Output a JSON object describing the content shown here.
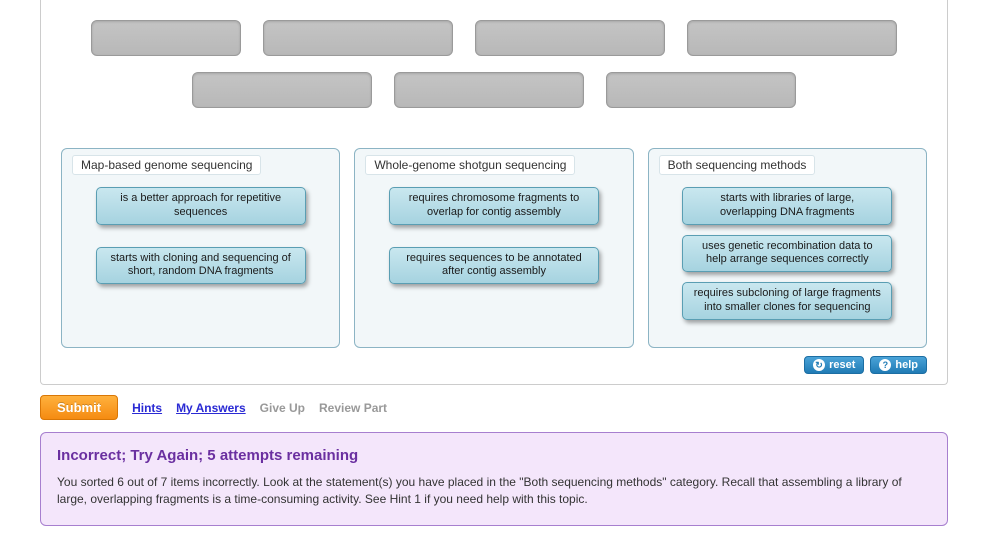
{
  "dragSlots": {
    "row1": [
      150,
      190,
      190,
      210
    ],
    "row2": [
      180,
      190,
      190
    ]
  },
  "bins": [
    {
      "title": "Map-based genome sequencing",
      "tight": false,
      "items": [
        "is a better approach for repetitive sequences",
        "starts with cloning and sequencing of short, random DNA fragments"
      ]
    },
    {
      "title": "Whole-genome shotgun sequencing",
      "tight": false,
      "items": [
        "requires chromosome fragments to overlap for contig assembly",
        "requires sequences to be annotated after contig assembly"
      ]
    },
    {
      "title": "Both sequencing methods",
      "tight": true,
      "items": [
        "starts with libraries of large, overlapping DNA fragments",
        "uses genetic recombination data to help arrange sequences correctly",
        "requires subcloning of large fragments into smaller clones for sequencing"
      ]
    }
  ],
  "buttons": {
    "reset": "reset",
    "help": "help",
    "submit": "Submit"
  },
  "actions": {
    "hints": "Hints",
    "myAnswers": "My Answers",
    "giveUp": "Give Up",
    "reviewPart": "Review Part"
  },
  "feedback": {
    "title": "Incorrect; Try Again; 5 attempts remaining",
    "body": "You sorted 6 out of 7 items incorrectly. Look at the statement(s) you have placed in the \"Both sequencing methods\" category. Recall that assembling a library of large, overlapping fragments is a time-consuming activity. See Hint 1 if you need help with this topic."
  },
  "colors": {
    "binBorder": "#8cb4c4",
    "binBg": "#f2f7f9",
    "chipBgTop": "#c9e7ef",
    "chipBgBot": "#a6d3e0",
    "chipBorder": "#5a9eb3",
    "slotBg": "#c0c0c0",
    "submitTop": "#ffb13d",
    "submitBot": "#f58b11",
    "pillTop": "#4aa3d8",
    "pillBot": "#207bb5",
    "feedbackBorder": "#a77fcf",
    "feedbackBg": "#f4e6fb",
    "feedbackTitle": "#6a2fa0",
    "link": "#2a2ad4"
  }
}
